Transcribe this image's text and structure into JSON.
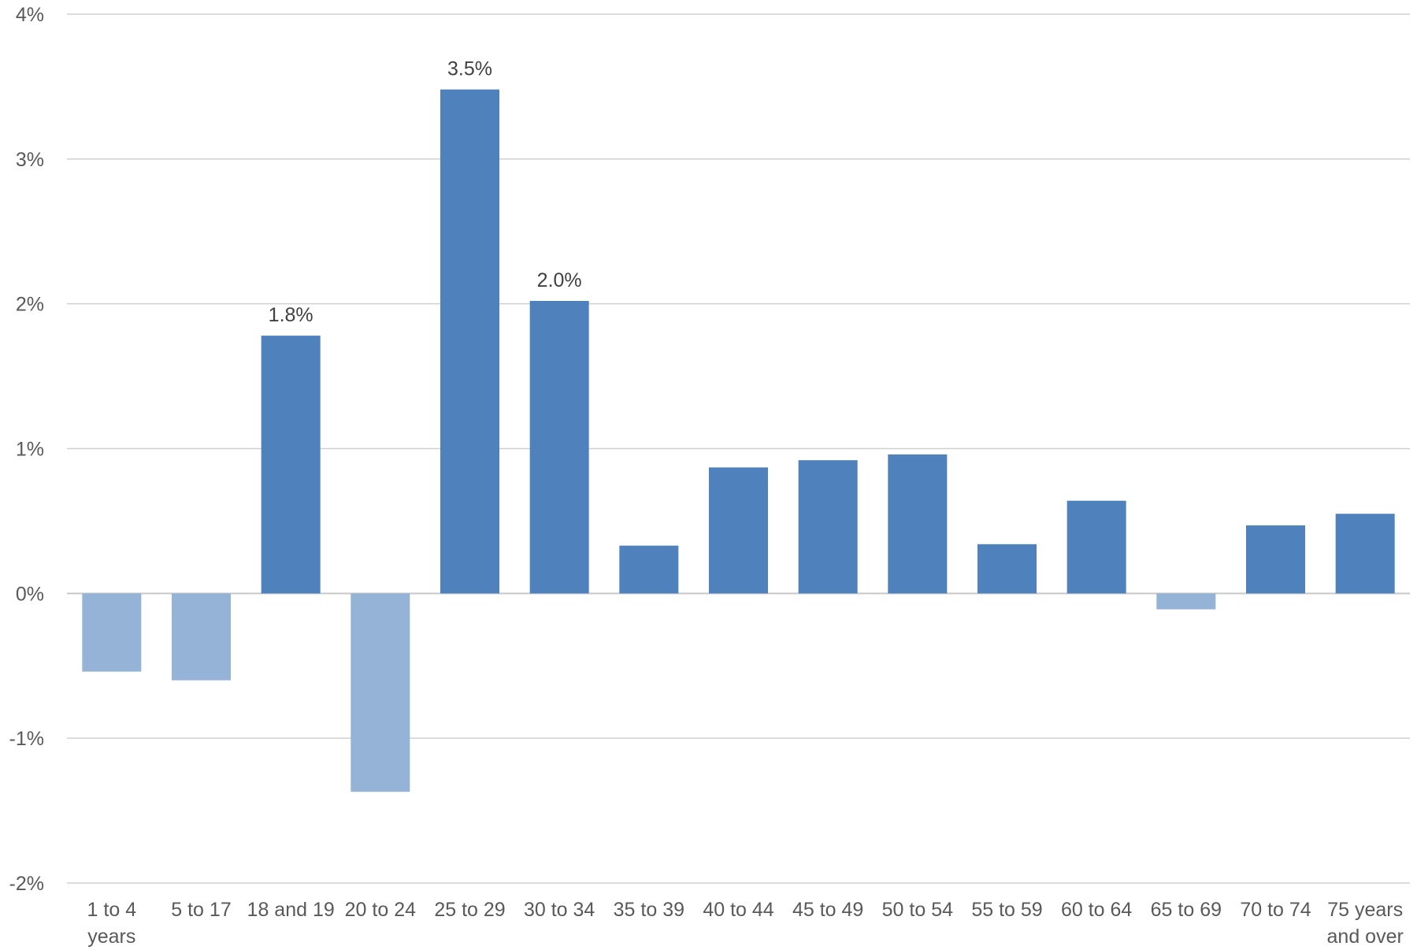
{
  "chart_data": {
    "type": "bar",
    "title": "",
    "xlabel": "",
    "ylabel": "",
    "ylim": [
      -2,
      4
    ],
    "yticks": [
      {
        "value": 4,
        "label": "4%"
      },
      {
        "value": 3,
        "label": "3%"
      },
      {
        "value": 2,
        "label": "2%"
      },
      {
        "value": 1,
        "label": "1%"
      },
      {
        "value": 0,
        "label": "0%"
      },
      {
        "value": -1,
        "label": "-1%"
      },
      {
        "value": -2,
        "label": "-2%"
      }
    ],
    "categories": [
      [
        "1 to 4",
        "years"
      ],
      [
        "5 to 17"
      ],
      [
        "18 and 19"
      ],
      [
        "20 to 24"
      ],
      [
        "25 to 29"
      ],
      [
        "30 to 34"
      ],
      [
        "35 to 39"
      ],
      [
        "40 to 44"
      ],
      [
        "45 to 49"
      ],
      [
        "50 to 54"
      ],
      [
        "55 to 59"
      ],
      [
        "60 to 64"
      ],
      [
        "65 to 69"
      ],
      [
        "70 to 74"
      ],
      [
        "75 years",
        "and over"
      ]
    ],
    "values": [
      -0.54,
      -0.6,
      1.78,
      -1.37,
      3.48,
      2.02,
      0.33,
      0.87,
      0.92,
      0.96,
      0.34,
      0.64,
      -0.11,
      0.47,
      0.55
    ],
    "data_labels": [
      "",
      "",
      "1.8%",
      "",
      "3.5%",
      "2.0%",
      "",
      "",
      "",
      "",
      "",
      "",
      "",
      "",
      ""
    ],
    "grid": true,
    "legend": "none",
    "colors": {
      "positive": "#4f81bd",
      "negative": "#95b3d7",
      "grid": "#d0d0d0",
      "tick_text": "#595959",
      "label_text": "#404040"
    }
  }
}
